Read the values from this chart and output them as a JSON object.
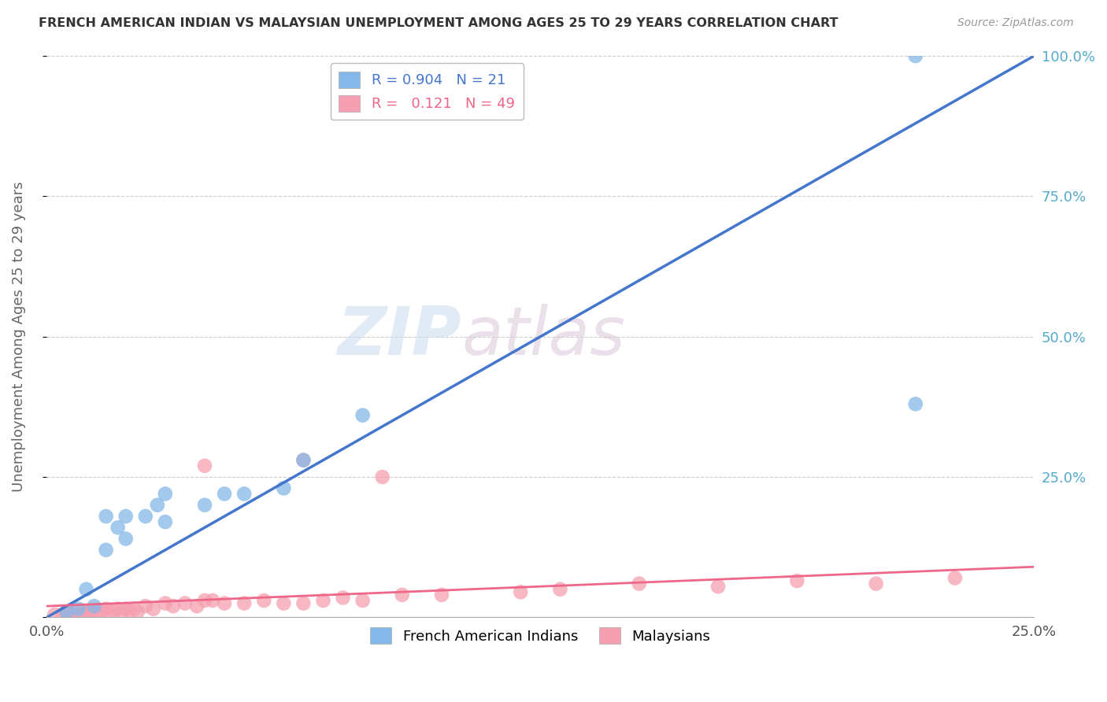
{
  "title": "FRENCH AMERICAN INDIAN VS MALAYSIAN UNEMPLOYMENT AMONG AGES 25 TO 29 YEARS CORRELATION CHART",
  "source": "Source: ZipAtlas.com",
  "ylabel": "Unemployment Among Ages 25 to 29 years",
  "xlabel": "",
  "xlim": [
    0,
    0.25
  ],
  "ylim": [
    0,
    1.0
  ],
  "legend_R1": "0.904",
  "legend_N1": "21",
  "legend_R2": "0.121",
  "legend_N2": "49",
  "blue_color": "#85B7E8",
  "pink_color": "#F5A0B0",
  "blue_line_color": "#4477CC",
  "pink_line_color": "#EE6688",
  "watermark_zip": "ZIP",
  "watermark_atlas": "atlas",
  "background_color": "#FFFFFF",
  "grid_color": "#CCCCCC",
  "blue_scatter_x": [
    0.005,
    0.008,
    0.01,
    0.012,
    0.015,
    0.015,
    0.018,
    0.02,
    0.02,
    0.025,
    0.028,
    0.03,
    0.03,
    0.04,
    0.045,
    0.05,
    0.06,
    0.065,
    0.08,
    0.22,
    0.22
  ],
  "blue_scatter_y": [
    0.01,
    0.015,
    0.05,
    0.02,
    0.12,
    0.18,
    0.16,
    0.14,
    0.18,
    0.18,
    0.2,
    0.17,
    0.22,
    0.2,
    0.22,
    0.22,
    0.23,
    0.28,
    0.36,
    0.38,
    1.0
  ],
  "pink_scatter_x": [
    0.002,
    0.004,
    0.005,
    0.006,
    0.007,
    0.008,
    0.009,
    0.01,
    0.011,
    0.012,
    0.013,
    0.014,
    0.015,
    0.016,
    0.017,
    0.018,
    0.019,
    0.02,
    0.021,
    0.022,
    0.023,
    0.025,
    0.027,
    0.03,
    0.032,
    0.035,
    0.038,
    0.04,
    0.042,
    0.045,
    0.05,
    0.055,
    0.06,
    0.065,
    0.07,
    0.075,
    0.08,
    0.09,
    0.1,
    0.12,
    0.13,
    0.15,
    0.17,
    0.19,
    0.21,
    0.23,
    0.04,
    0.065,
    0.085
  ],
  "pink_scatter_y": [
    0.005,
    0.005,
    0.01,
    0.005,
    0.008,
    0.005,
    0.01,
    0.008,
    0.01,
    0.012,
    0.008,
    0.01,
    0.015,
    0.01,
    0.012,
    0.015,
    0.01,
    0.015,
    0.012,
    0.015,
    0.01,
    0.02,
    0.015,
    0.025,
    0.02,
    0.025,
    0.02,
    0.03,
    0.03,
    0.025,
    0.025,
    0.03,
    0.025,
    0.025,
    0.03,
    0.035,
    0.03,
    0.04,
    0.04,
    0.045,
    0.05,
    0.06,
    0.055,
    0.065,
    0.06,
    0.07,
    0.27,
    0.28,
    0.25
  ],
  "blue_line_x": [
    0.0,
    0.25
  ],
  "blue_line_y": [
    0.0,
    1.0
  ],
  "pink_line_x": [
    0.0,
    0.25
  ],
  "pink_line_y": [
    0.02,
    0.09
  ]
}
